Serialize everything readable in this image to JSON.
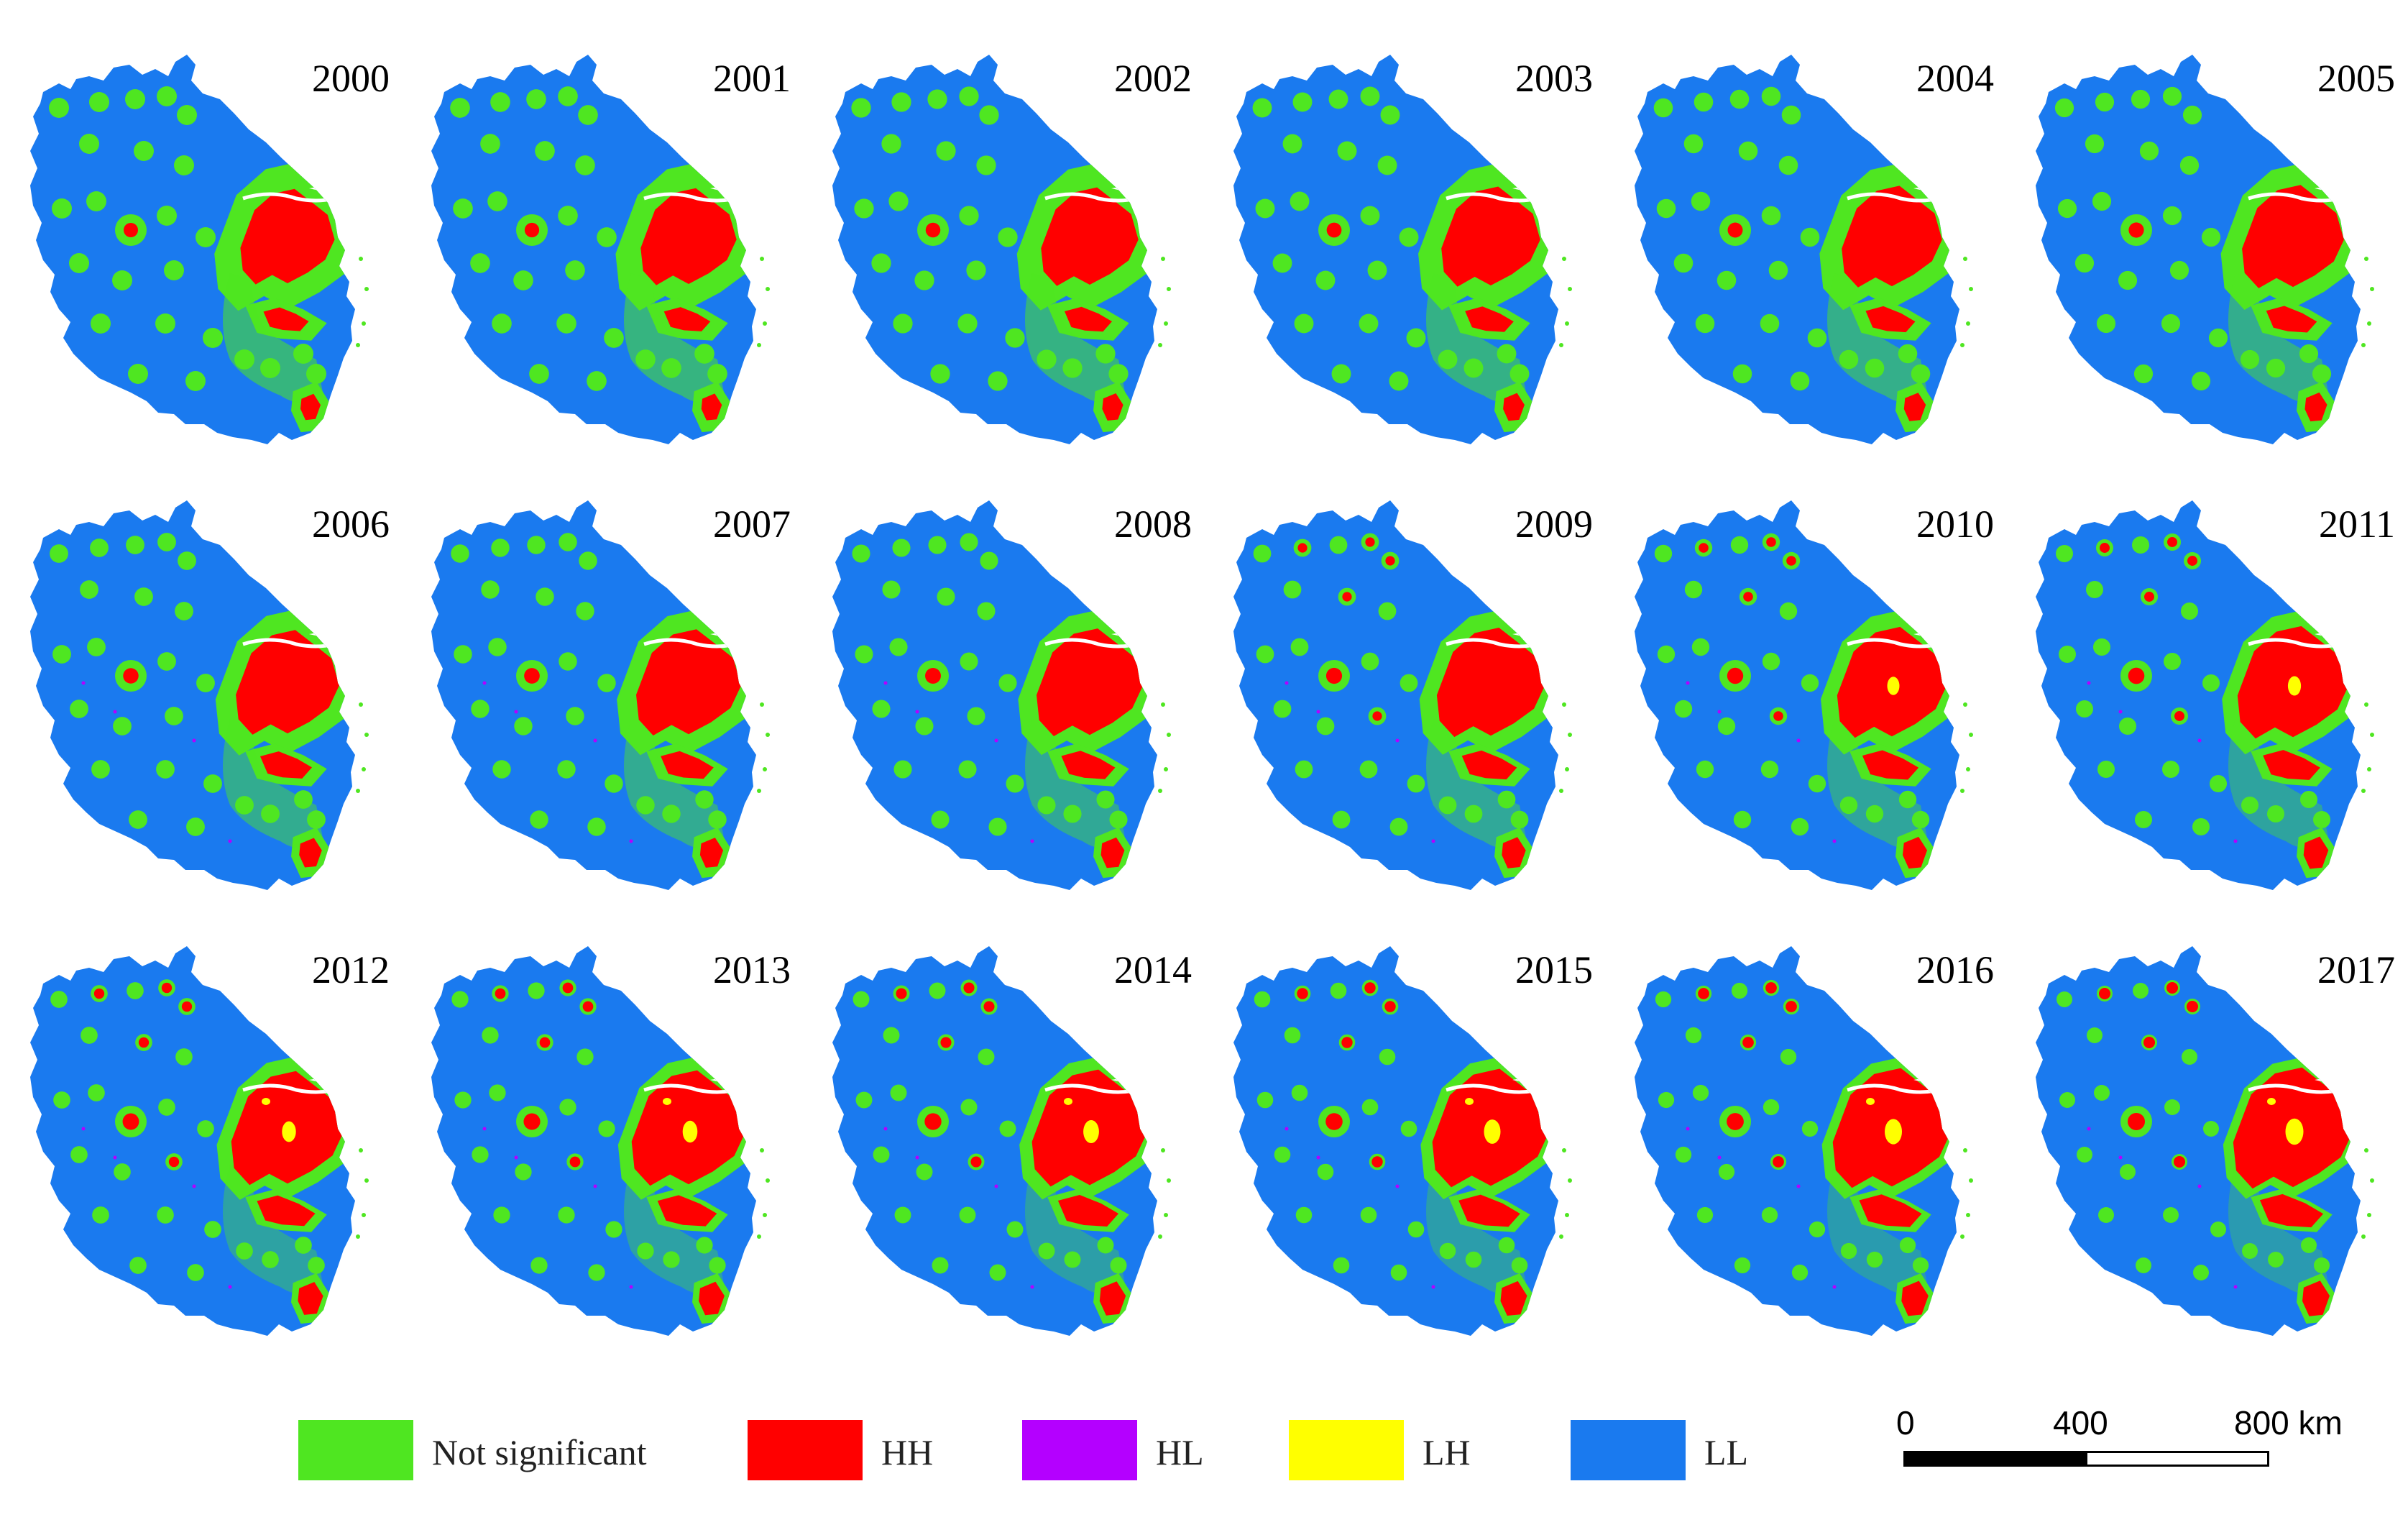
{
  "figure": {
    "panels": [
      {
        "year": "2000",
        "hh_level": 0.0
      },
      {
        "year": "2001",
        "hh_level": 0.06
      },
      {
        "year": "2002",
        "hh_level": 0.12
      },
      {
        "year": "2003",
        "hh_level": 0.18
      },
      {
        "year": "2004",
        "hh_level": 0.24
      },
      {
        "year": "2005",
        "hh_level": 0.3
      },
      {
        "year": "2006",
        "hh_level": 0.36
      },
      {
        "year": "2007",
        "hh_level": 0.42
      },
      {
        "year": "2008",
        "hh_level": 0.48
      },
      {
        "year": "2009",
        "hh_level": 0.54
      },
      {
        "year": "2010",
        "hh_level": 0.6
      },
      {
        "year": "2011",
        "hh_level": 0.66
      },
      {
        "year": "2012",
        "hh_level": 0.72
      },
      {
        "year": "2013",
        "hh_level": 0.78
      },
      {
        "year": "2014",
        "hh_level": 0.84
      },
      {
        "year": "2015",
        "hh_level": 0.9
      },
      {
        "year": "2016",
        "hh_level": 0.95
      },
      {
        "year": "2017",
        "hh_level": 1.0
      }
    ]
  },
  "legend": {
    "items": [
      {
        "label": "Not significant",
        "color": "#4fe621"
      },
      {
        "label": "HH",
        "color": "#ff0000"
      },
      {
        "label": "HL",
        "color": "#b400ff"
      },
      {
        "label": "LH",
        "color": "#ffff00"
      },
      {
        "label": "LL",
        "color": "#1a7aef"
      }
    ]
  },
  "scale_bar": {
    "ticks": [
      "0",
      "400",
      "800 km"
    ]
  }
}
